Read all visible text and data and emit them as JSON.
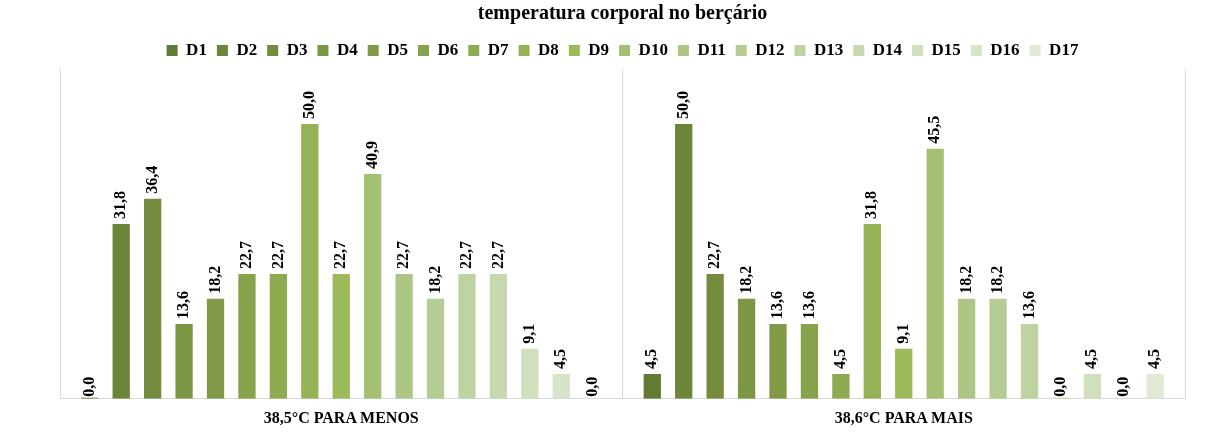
{
  "chart_data": {
    "type": "bar",
    "title": "temperatura corporal no berçário",
    "categories": [
      "38,5°C PARA MENOS",
      "38,6°C PARA MAIS"
    ],
    "legend": "top",
    "grid": "x",
    "tick_labels": "x",
    "series": [
      {
        "name": "D1",
        "color": "#617a34",
        "values": [
          0.0,
          4.5
        ],
        "value_labels": [
          "0,0",
          "4,5"
        ]
      },
      {
        "name": "D2",
        "color": "#6b8539",
        "values": [
          31.8,
          50.0
        ],
        "value_labels": [
          "31,8",
          "50,0"
        ]
      },
      {
        "name": "D3",
        "color": "#738c3e",
        "values": [
          36.4,
          22.7
        ],
        "value_labels": [
          "36,4",
          "22,7"
        ]
      },
      {
        "name": "D4",
        "color": "#7c9744",
        "values": [
          13.6,
          18.2
        ],
        "value_labels": [
          "13,6",
          "18,2"
        ]
      },
      {
        "name": "D5",
        "color": "#809a48",
        "values": [
          18.2,
          13.6
        ],
        "value_labels": [
          "18,2",
          "13,6"
        ]
      },
      {
        "name": "D6",
        "color": "#86a24a",
        "values": [
          22.7,
          13.6
        ],
        "value_labels": [
          "22,7",
          "13,6"
        ]
      },
      {
        "name": "D7",
        "color": "#8daa4f",
        "values": [
          22.7,
          4.5
        ],
        "value_labels": [
          "22,7",
          "4,5"
        ]
      },
      {
        "name": "D8",
        "color": "#94b355",
        "values": [
          50.0,
          31.8
        ],
        "value_labels": [
          "50,0",
          "31,8"
        ]
      },
      {
        "name": "D9",
        "color": "#9cba59",
        "values": [
          22.7,
          9.1
        ],
        "value_labels": [
          "22,7",
          "9,1"
        ]
      },
      {
        "name": "D10",
        "color": "#a5c073",
        "values": [
          40.9,
          45.5
        ],
        "value_labels": [
          "40,9",
          "45,5"
        ]
      },
      {
        "name": "D11",
        "color": "#adc684",
        "values": [
          22.7,
          18.2
        ],
        "value_labels": [
          "22,7",
          "18,2"
        ]
      },
      {
        "name": "D12",
        "color": "#b5cd94",
        "values": [
          18.2,
          18.2
        ],
        "value_labels": [
          "18,2",
          "18,2"
        ]
      },
      {
        "name": "D13",
        "color": "#bfd2a2",
        "values": [
          22.7,
          13.6
        ],
        "value_labels": [
          "22,7",
          "13,6"
        ]
      },
      {
        "name": "D14",
        "color": "#c7d8b0",
        "values": [
          22.7,
          0.0
        ],
        "value_labels": [
          "22,7",
          "0,0"
        ]
      },
      {
        "name": "D15",
        "color": "#d0dfbc",
        "values": [
          9.1,
          4.5
        ],
        "value_labels": [
          "9,1",
          "4,5"
        ]
      },
      {
        "name": "D16",
        "color": "#d8e4c9",
        "values": [
          4.5,
          0.0
        ],
        "value_labels": [
          "4,5",
          "0,0"
        ]
      },
      {
        "name": "D17",
        "color": "#e0e9d4",
        "values": [
          0.0,
          4.5
        ],
        "value_labels": [
          "0,0",
          "4,5"
        ]
      }
    ]
  }
}
